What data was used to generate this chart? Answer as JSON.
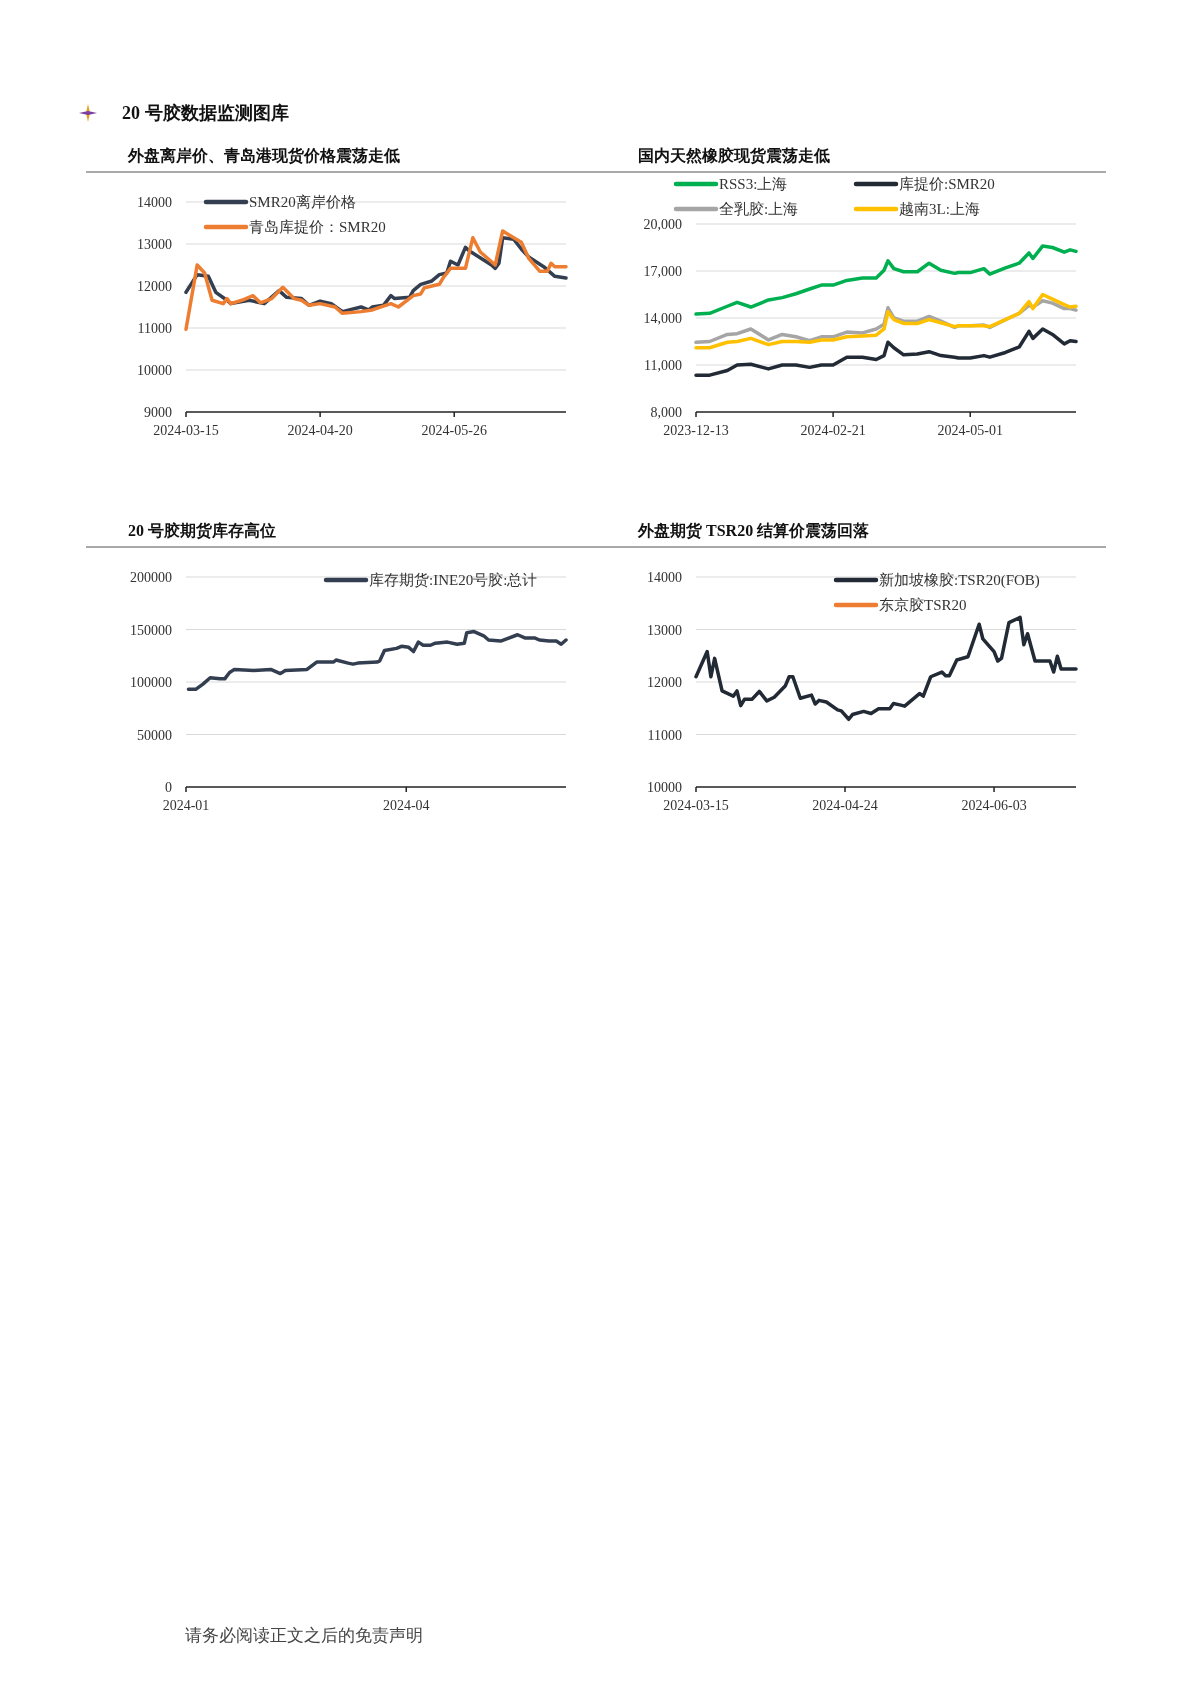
{
  "chart_data": [
    {
      "type": "other",
      "title": "20 号胶数据监测图库"
    },
    {
      "type": "line",
      "title": "外盘离岸价、青岛港现货价格震荡走低",
      "xlim": [
        "2024-03-15",
        "2024-06-25"
      ],
      "xticks": [
        "2024-03-15",
        "2024-04-20",
        "2024-05-26"
      ],
      "ylim": [
        9000,
        14000
      ],
      "yticks": [
        9000,
        10000,
        11000,
        12000,
        13000,
        14000
      ],
      "grid": "y",
      "legend": "top left",
      "series": [
        {
          "name": "SMR20离岸价格",
          "color": "#333f50",
          "x": [
            "2024-03-15",
            "2024-03-18",
            "2024-03-21",
            "2024-03-23",
            "2024-03-26",
            "2024-03-27",
            "2024-04-01",
            "2024-04-05",
            "2024-04-09",
            "2024-04-11",
            "2024-04-15",
            "2024-04-17",
            "2024-04-20",
            "2024-04-23",
            "2024-04-26",
            "2024-05-01",
            "2024-05-03",
            "2024-05-04",
            "2024-05-07",
            "2024-05-09",
            "2024-05-10",
            "2024-05-14",
            "2024-05-15",
            "2024-05-17",
            "2024-05-20",
            "2024-05-22",
            "2024-05-24",
            "2024-05-25",
            "2024-05-27",
            "2024-05-29",
            "2024-05-30",
            "2024-06-05",
            "2024-06-06",
            "2024-06-07",
            "2024-06-08",
            "2024-06-11",
            "2024-06-13",
            "2024-06-15",
            "2024-06-19",
            "2024-06-22",
            "2024-06-25"
          ],
          "values": [
            11850,
            12270,
            12230,
            11850,
            11660,
            11580,
            11660,
            11580,
            11890,
            11730,
            11700,
            11540,
            11640,
            11580,
            11390,
            11500,
            11430,
            11500,
            11540,
            11770,
            11700,
            11730,
            11890,
            12040,
            12120,
            12270,
            12310,
            12590,
            12500,
            12920,
            12840,
            12500,
            12420,
            12540,
            13150,
            13110,
            12880,
            12690,
            12460,
            12230,
            12190
          ]
        },
        {
          "name": "青岛库提价：SMR20",
          "color": "#ed7d31",
          "x": [
            "2024-03-15",
            "2024-03-18",
            "2024-03-20",
            "2024-03-22",
            "2024-03-25",
            "2024-03-26",
            "2024-03-27",
            "2024-03-30",
            "2024-04-02",
            "2024-04-04",
            "2024-04-07",
            "2024-04-10",
            "2024-04-13",
            "2024-04-15",
            "2024-04-17",
            "2024-04-20",
            "2024-04-24",
            "2024-04-26",
            "2024-05-01",
            "2024-05-04",
            "2024-05-09",
            "2024-05-11",
            "2024-05-15",
            "2024-05-17",
            "2024-05-18",
            "2024-05-22",
            "2024-05-23",
            "2024-05-25",
            "2024-05-29",
            "2024-05-31",
            "2024-06-02",
            "2024-06-06",
            "2024-06-08",
            "2024-06-13",
            "2024-06-15",
            "2024-06-18",
            "2024-06-20",
            "2024-06-21",
            "2024-06-22",
            "2024-06-25"
          ],
          "values": [
            10970,
            12500,
            12310,
            11660,
            11580,
            11700,
            11580,
            11660,
            11770,
            11600,
            11700,
            11970,
            11700,
            11660,
            11540,
            11580,
            11500,
            11350,
            11390,
            11430,
            11580,
            11500,
            11770,
            11810,
            11960,
            12040,
            12190,
            12420,
            12420,
            13150,
            12810,
            12500,
            13310,
            13040,
            12660,
            12350,
            12350,
            12540,
            12460,
            12460
          ]
        }
      ]
    },
    {
      "type": "line",
      "title": "国内天然橡胶现货震荡走低",
      "xlim": [
        "2023-12-13",
        "2024-06-24"
      ],
      "xticks": [
        "2023-12-13",
        "2024-02-21",
        "2024-05-01"
      ],
      "ylim": [
        8000,
        20000
      ],
      "yticks": [
        {
          "value": 8000,
          "label": "8,000"
        },
        {
          "value": 11000,
          "label": "11,000"
        },
        {
          "value": 14000,
          "label": "14,000"
        },
        {
          "value": 17000,
          "label": "17,000"
        },
        {
          "value": 20000,
          "label": "20,000"
        }
      ],
      "grid": "y",
      "legend": "top",
      "series": [
        {
          "name": "RSS3:上海",
          "color": "#00b050",
          "x": [
            "2023-12-13",
            "2023-12-20",
            "2023-12-29",
            "2024-01-03",
            "2024-01-10",
            "2024-01-19",
            "2024-01-26",
            "2024-02-02",
            "2024-02-09",
            "2024-02-15",
            "2024-02-21",
            "2024-02-28",
            "2024-03-07",
            "2024-03-14",
            "2024-03-18",
            "2024-03-20",
            "2024-03-23",
            "2024-03-28",
            "2024-04-04",
            "2024-04-10",
            "2024-04-16",
            "2024-04-23",
            "2024-04-25",
            "2024-05-01",
            "2024-05-08",
            "2024-05-11",
            "2024-05-19",
            "2024-05-26",
            "2024-05-31",
            "2024-06-02",
            "2024-06-07",
            "2024-06-12",
            "2024-06-18",
            "2024-06-21",
            "2024-06-24"
          ],
          "values": [
            14250,
            14300,
            14750,
            15000,
            14700,
            15150,
            15300,
            15550,
            15850,
            16100,
            16100,
            16400,
            16550,
            16550,
            17050,
            17650,
            17150,
            16950,
            16950,
            17500,
            17050,
            16850,
            16900,
            16900,
            17150,
            16800,
            17200,
            17500,
            18150,
            17800,
            18600,
            18500,
            18200,
            18350,
            18250
          ]
        },
        {
          "name": "库提价:SMR20",
          "color": "#222a35",
          "x": [
            "2023-12-13",
            "2023-12-20",
            "2023-12-29",
            "2024-01-03",
            "2024-01-10",
            "2024-01-19",
            "2024-01-26",
            "2024-02-02",
            "2024-02-09",
            "2024-02-15",
            "2024-02-21",
            "2024-02-28",
            "2024-03-07",
            "2024-03-14",
            "2024-03-18",
            "2024-03-20",
            "2024-03-23",
            "2024-03-28",
            "2024-04-04",
            "2024-04-10",
            "2024-04-16",
            "2024-04-23",
            "2024-04-25",
            "2024-05-01",
            "2024-05-08",
            "2024-05-11",
            "2024-05-19",
            "2024-05-26",
            "2024-05-31",
            "2024-06-02",
            "2024-06-07",
            "2024-06-12",
            "2024-06-18",
            "2024-06-21",
            "2024-06-24"
          ],
          "values": [
            10350,
            10350,
            10650,
            11000,
            11050,
            10750,
            11000,
            11000,
            10850,
            11000,
            11000,
            11500,
            11500,
            11350,
            11600,
            12450,
            12100,
            11650,
            11700,
            11850,
            11600,
            11500,
            11450,
            11450,
            11600,
            11500,
            11800,
            12150,
            13150,
            12700,
            13300,
            12950,
            12350,
            12550,
            12500
          ]
        },
        {
          "name": "全乳胶:上海",
          "color": "#a5a5a5",
          "x": [
            "2023-12-13",
            "2023-12-20",
            "2023-12-29",
            "2024-01-03",
            "2024-01-10",
            "2024-01-19",
            "2024-01-26",
            "2024-02-02",
            "2024-02-09",
            "2024-02-15",
            "2024-02-21",
            "2024-02-28",
            "2024-03-07",
            "2024-03-14",
            "2024-03-18",
            "2024-03-20",
            "2024-03-23",
            "2024-03-28",
            "2024-04-04",
            "2024-04-10",
            "2024-04-16",
            "2024-04-23",
            "2024-04-25",
            "2024-05-01",
            "2024-05-08",
            "2024-05-11",
            "2024-05-19",
            "2024-05-26",
            "2024-05-31",
            "2024-06-02",
            "2024-06-07",
            "2024-06-12",
            "2024-06-18",
            "2024-06-21",
            "2024-06-24"
          ],
          "values": [
            12450,
            12500,
            12950,
            13000,
            13300,
            12600,
            12950,
            12800,
            12550,
            12800,
            12800,
            13100,
            13050,
            13300,
            13600,
            14650,
            14000,
            13800,
            13800,
            14100,
            13800,
            13400,
            13500,
            13500,
            13550,
            13400,
            13900,
            14300,
            14800,
            14700,
            15100,
            14950,
            14600,
            14600,
            14500
          ]
        },
        {
          "name": "越南3L:上海",
          "color": "#ffc000",
          "x": [
            "2023-12-13",
            "2023-12-20",
            "2023-12-29",
            "2024-01-03",
            "2024-01-10",
            "2024-01-19",
            "2024-01-26",
            "2024-02-02",
            "2024-02-09",
            "2024-02-15",
            "2024-02-21",
            "2024-02-28",
            "2024-03-07",
            "2024-03-14",
            "2024-03-18",
            "2024-03-20",
            "2024-03-23",
            "2024-03-28",
            "2024-04-04",
            "2024-04-10",
            "2024-04-16",
            "2024-04-23",
            "2024-04-25",
            "2024-05-01",
            "2024-05-08",
            "2024-05-11",
            "2024-05-19",
            "2024-05-26",
            "2024-05-31",
            "2024-06-02",
            "2024-06-07",
            "2024-06-12",
            "2024-06-18",
            "2024-06-21",
            "2024-06-24"
          ],
          "values": [
            12100,
            12100,
            12450,
            12500,
            12700,
            12300,
            12500,
            12500,
            12450,
            12600,
            12600,
            12800,
            12850,
            12900,
            13300,
            14400,
            13900,
            13650,
            13650,
            13900,
            13700,
            13450,
            13500,
            13500,
            13500,
            13450,
            13900,
            14300,
            15050,
            14600,
            15500,
            15200,
            14850,
            14700,
            14750
          ]
        }
      ]
    },
    {
      "type": "line",
      "title": "20 号胶期货库存高位",
      "xlim": [
        "2024-01-01",
        "2024-06-06"
      ],
      "xticks": [
        "2024-01",
        "2024-04"
      ],
      "ylim": [
        0,
        200000
      ],
      "yticks": [
        0,
        50000,
        100000,
        150000,
        200000
      ],
      "grid": "y",
      "legend": "top right",
      "series": [
        {
          "name": "库存期货:INE20号胶:总计",
          "color": "#333f50",
          "x": [
            "2024-01-02",
            "2024-01-05",
            "2024-01-08",
            "2024-01-11",
            "2024-01-15",
            "2024-01-17",
            "2024-01-19",
            "2024-01-21",
            "2024-01-29",
            "2024-02-05",
            "2024-02-09",
            "2024-02-11",
            "2024-02-20",
            "2024-02-24",
            "2024-03-02",
            "2024-03-03",
            "2024-03-08",
            "2024-03-10",
            "2024-03-12",
            "2024-03-20",
            "2024-03-21",
            "2024-03-23",
            "2024-03-28",
            "2024-03-30",
            "2024-04-02",
            "2024-04-04",
            "2024-04-06",
            "2024-04-08",
            "2024-04-11",
            "2024-04-13",
            "2024-04-18",
            "2024-04-22",
            "2024-04-25",
            "2024-04-26",
            "2024-04-29",
            "2024-05-03",
            "2024-05-05",
            "2024-05-10",
            "2024-05-17",
            "2024-05-20",
            "2024-05-24",
            "2024-05-26",
            "2024-05-30",
            "2024-06-02",
            "2024-06-04",
            "2024-06-06"
          ],
          "values": [
            93000,
            93000,
            98000,
            104000,
            103000,
            103000,
            109000,
            112000,
            111000,
            112000,
            108000,
            111000,
            112000,
            119000,
            119000,
            121000,
            118000,
            117000,
            118000,
            119000,
            120000,
            130000,
            132000,
            134000,
            133000,
            129000,
            138000,
            135000,
            135000,
            137000,
            138000,
            136000,
            137000,
            147000,
            148000,
            144000,
            140000,
            139000,
            145000,
            142000,
            142000,
            140000,
            139000,
            139000,
            136000,
            140000
          ]
        }
      ]
    },
    {
      "type": "line",
      "title": "外盘期货 TSR20 结算价震荡回落",
      "xlim": [
        "2024-03-15",
        "2024-06-25"
      ],
      "xticks": [
        "2024-03-15",
        "2024-04-24",
        "2024-06-03"
      ],
      "ylim": [
        10000,
        14000
      ],
      "yticks": [
        10000,
        11000,
        12000,
        13000,
        14000
      ],
      "grid": "y",
      "legend": "top right",
      "series": [
        {
          "name": "新加坡橡胶:TSR20(FOB)",
          "color": "#222a35",
          "x": [
            "2024-03-15",
            "2024-03-18",
            "2024-03-19",
            "2024-03-20",
            "2024-03-22",
            "2024-03-25",
            "2024-03-26",
            "2024-03-27",
            "2024-03-28",
            "2024-03-30",
            "2024-04-01",
            "2024-04-03",
            "2024-04-05",
            "2024-04-08",
            "2024-04-09",
            "2024-04-10",
            "2024-04-12",
            "2024-04-15",
            "2024-04-16",
            "2024-04-17",
            "2024-04-19",
            "2024-04-22",
            "2024-04-23",
            "2024-04-25",
            "2024-04-26",
            "2024-04-29",
            "2024-05-01",
            "2024-05-03",
            "2024-05-06",
            "2024-05-07",
            "2024-05-09",
            "2024-05-10",
            "2024-05-14",
            "2024-05-15",
            "2024-05-17",
            "2024-05-20",
            "2024-05-21",
            "2024-05-22",
            "2024-05-24",
            "2024-05-27",
            "2024-05-30",
            "2024-05-31",
            "2024-06-03",
            "2024-06-04",
            "2024-06-05",
            "2024-06-07",
            "2024-06-10",
            "2024-06-11",
            "2024-06-12",
            "2024-06-14",
            "2024-06-18",
            "2024-06-19",
            "2024-06-20",
            "2024-06-21",
            "2024-06-25"
          ],
          "values": [
            12100,
            12580,
            12100,
            12450,
            11830,
            11730,
            11830,
            11550,
            11670,
            11670,
            11820,
            11640,
            11710,
            11930,
            12100,
            12100,
            11690,
            11750,
            11580,
            11650,
            11620,
            11470,
            11450,
            11290,
            11380,
            11440,
            11400,
            11490,
            11490,
            11590,
            11560,
            11540,
            11780,
            11730,
            12100,
            12190,
            12120,
            12120,
            12420,
            12480,
            13100,
            12820,
            12580,
            12400,
            12450,
            13130,
            13230,
            12710,
            12920,
            12400,
            12400,
            12190,
            12490,
            12250,
            12250
          ]
        },
        {
          "name": "东京胶TSR20",
          "color": "#ed7d31"
        }
      ]
    },
    {
      "type": "other",
      "annotations": [
        "请务必阅读正文之后的免责声明"
      ]
    }
  ]
}
